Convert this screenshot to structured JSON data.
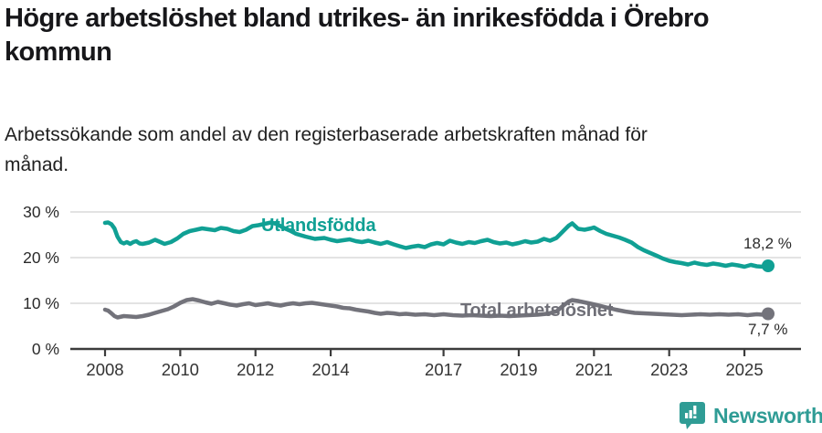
{
  "header": {
    "title": "Högre arbetslöshet bland utrikes- än inrikesfödda i Örebro kommun",
    "subtitle": "Arbetssökande som andel av den registerbaserade arbetskraften månad för månad."
  },
  "footer": {
    "brand": "Newsworthy"
  },
  "colors": {
    "accent_teal": "#10a094",
    "line_gray": "#73737b",
    "grid": "#dadada",
    "axis": "#3c3c3c",
    "text_dark": "#17171a",
    "brand_teal": "#2f9c95"
  },
  "chart_data": {
    "type": "line",
    "title": "Högre arbetslöshet bland utrikes- än inrikesfödda i Örebro kommun",
    "subtitle": "Arbetssökande som andel av den registerbaserade arbetskraften månad för månad.",
    "xlabel": "",
    "ylabel": "",
    "ylim": [
      0,
      30
    ],
    "xlim": [
      2007.9,
      2025.8
    ],
    "grid": "horizontal",
    "legend_position": "inline-labels",
    "yticks": [
      {
        "value": 0,
        "label": "0 %"
      },
      {
        "value": 10,
        "label": "10 %"
      },
      {
        "value": 20,
        "label": "20 %"
      },
      {
        "value": 30,
        "label": "30 %"
      }
    ],
    "xticks": [
      {
        "value": 2008,
        "label": "2008"
      },
      {
        "value": 2010,
        "label": "2010"
      },
      {
        "value": 2012,
        "label": "2012"
      },
      {
        "value": 2014,
        "label": "2014"
      },
      {
        "value": 2017,
        "label": "2017"
      },
      {
        "value": 2019,
        "label": "2019"
      },
      {
        "value": 2021,
        "label": "2021"
      },
      {
        "value": 2023,
        "label": "2023"
      },
      {
        "value": 2025,
        "label": "2025"
      }
    ],
    "series": [
      {
        "name": "Utlandsfödda",
        "color": "#10a094",
        "end_value": 18.2,
        "end_label": "18,2 %",
        "points": [
          [
            2008.0,
            27.6
          ],
          [
            2008.08,
            27.7
          ],
          [
            2008.17,
            27.3
          ],
          [
            2008.25,
            26.4
          ],
          [
            2008.33,
            24.6
          ],
          [
            2008.42,
            23.4
          ],
          [
            2008.5,
            23.1
          ],
          [
            2008.58,
            23.4
          ],
          [
            2008.67,
            23.0
          ],
          [
            2008.75,
            23.4
          ],
          [
            2008.83,
            23.6
          ],
          [
            2008.92,
            23.1
          ],
          [
            2009.0,
            23.0
          ],
          [
            2009.17,
            23.3
          ],
          [
            2009.33,
            23.9
          ],
          [
            2009.5,
            23.3
          ],
          [
            2009.58,
            23.0
          ],
          [
            2009.75,
            23.4
          ],
          [
            2009.92,
            24.2
          ],
          [
            2010.08,
            25.2
          ],
          [
            2010.25,
            25.8
          ],
          [
            2010.42,
            26.1
          ],
          [
            2010.58,
            26.4
          ],
          [
            2010.75,
            26.2
          ],
          [
            2010.92,
            26.0
          ],
          [
            2011.08,
            26.5
          ],
          [
            2011.25,
            26.3
          ],
          [
            2011.42,
            25.8
          ],
          [
            2011.58,
            25.6
          ],
          [
            2011.75,
            26.1
          ],
          [
            2011.92,
            26.9
          ],
          [
            2012.08,
            27.1
          ],
          [
            2012.25,
            27.4
          ],
          [
            2012.42,
            27.7
          ],
          [
            2012.58,
            27.3
          ],
          [
            2012.75,
            26.5
          ],
          [
            2012.92,
            25.9
          ],
          [
            2013.08,
            25.2
          ],
          [
            2013.33,
            24.6
          ],
          [
            2013.58,
            24.1
          ],
          [
            2013.83,
            24.3
          ],
          [
            2014.0,
            23.9
          ],
          [
            2014.17,
            23.6
          ],
          [
            2014.33,
            23.8
          ],
          [
            2014.5,
            24.0
          ],
          [
            2014.67,
            23.6
          ],
          [
            2014.83,
            23.4
          ],
          [
            2015.0,
            23.7
          ],
          [
            2015.17,
            23.3
          ],
          [
            2015.33,
            23.0
          ],
          [
            2015.5,
            23.4
          ],
          [
            2015.67,
            22.9
          ],
          [
            2015.83,
            22.5
          ],
          [
            2016.0,
            22.1
          ],
          [
            2016.17,
            22.4
          ],
          [
            2016.33,
            22.6
          ],
          [
            2016.5,
            22.3
          ],
          [
            2016.67,
            22.9
          ],
          [
            2016.83,
            23.2
          ],
          [
            2017.0,
            22.9
          ],
          [
            2017.17,
            23.7
          ],
          [
            2017.33,
            23.3
          ],
          [
            2017.5,
            23.0
          ],
          [
            2017.67,
            23.4
          ],
          [
            2017.83,
            23.2
          ],
          [
            2018.0,
            23.6
          ],
          [
            2018.17,
            23.9
          ],
          [
            2018.33,
            23.4
          ],
          [
            2018.5,
            23.1
          ],
          [
            2018.67,
            23.3
          ],
          [
            2018.83,
            22.9
          ],
          [
            2019.0,
            23.2
          ],
          [
            2019.17,
            23.6
          ],
          [
            2019.33,
            23.3
          ],
          [
            2019.5,
            23.5
          ],
          [
            2019.67,
            24.1
          ],
          [
            2019.83,
            23.7
          ],
          [
            2020.0,
            24.3
          ],
          [
            2020.17,
            25.7
          ],
          [
            2020.33,
            27.0
          ],
          [
            2020.42,
            27.5
          ],
          [
            2020.58,
            26.3
          ],
          [
            2020.75,
            26.1
          ],
          [
            2020.92,
            26.4
          ],
          [
            2021.0,
            26.6
          ],
          [
            2021.17,
            25.8
          ],
          [
            2021.33,
            25.2
          ],
          [
            2021.5,
            24.8
          ],
          [
            2021.67,
            24.4
          ],
          [
            2021.83,
            23.9
          ],
          [
            2022.0,
            23.3
          ],
          [
            2022.17,
            22.3
          ],
          [
            2022.33,
            21.6
          ],
          [
            2022.5,
            21.0
          ],
          [
            2022.67,
            20.4
          ],
          [
            2022.83,
            19.8
          ],
          [
            2023.0,
            19.3
          ],
          [
            2023.17,
            19.0
          ],
          [
            2023.33,
            18.8
          ],
          [
            2023.5,
            18.5
          ],
          [
            2023.67,
            18.9
          ],
          [
            2023.83,
            18.6
          ],
          [
            2024.0,
            18.4
          ],
          [
            2024.17,
            18.7
          ],
          [
            2024.33,
            18.5
          ],
          [
            2024.5,
            18.2
          ],
          [
            2024.67,
            18.5
          ],
          [
            2024.83,
            18.3
          ],
          [
            2025.0,
            18.0
          ],
          [
            2025.17,
            18.4
          ],
          [
            2025.33,
            18.1
          ],
          [
            2025.5,
            18.0
          ],
          [
            2025.63,
            18.2
          ]
        ]
      },
      {
        "name": "Total arbetslöshet",
        "color": "#73737b",
        "end_value": 7.7,
        "end_label": "7,7 %",
        "points": [
          [
            2008.0,
            8.6
          ],
          [
            2008.08,
            8.4
          ],
          [
            2008.17,
            7.8
          ],
          [
            2008.25,
            7.2
          ],
          [
            2008.33,
            6.9
          ],
          [
            2008.5,
            7.2
          ],
          [
            2008.67,
            7.1
          ],
          [
            2008.83,
            7.0
          ],
          [
            2009.0,
            7.2
          ],
          [
            2009.17,
            7.5
          ],
          [
            2009.33,
            7.9
          ],
          [
            2009.5,
            8.3
          ],
          [
            2009.67,
            8.7
          ],
          [
            2009.83,
            9.3
          ],
          [
            2010.0,
            10.1
          ],
          [
            2010.17,
            10.7
          ],
          [
            2010.33,
            10.9
          ],
          [
            2010.5,
            10.6
          ],
          [
            2010.67,
            10.2
          ],
          [
            2010.83,
            9.9
          ],
          [
            2011.0,
            10.3
          ],
          [
            2011.17,
            10.0
          ],
          [
            2011.33,
            9.7
          ],
          [
            2011.5,
            9.5
          ],
          [
            2011.67,
            9.8
          ],
          [
            2011.83,
            10.0
          ],
          [
            2012.0,
            9.6
          ],
          [
            2012.17,
            9.8
          ],
          [
            2012.33,
            10.0
          ],
          [
            2012.5,
            9.7
          ],
          [
            2012.67,
            9.5
          ],
          [
            2012.83,
            9.8
          ],
          [
            2013.0,
            10.0
          ],
          [
            2013.17,
            9.8
          ],
          [
            2013.33,
            10.0
          ],
          [
            2013.5,
            10.1
          ],
          [
            2013.67,
            9.9
          ],
          [
            2013.83,
            9.7
          ],
          [
            2014.0,
            9.5
          ],
          [
            2014.17,
            9.3
          ],
          [
            2014.33,
            9.0
          ],
          [
            2014.5,
            8.9
          ],
          [
            2014.67,
            8.6
          ],
          [
            2014.83,
            8.4
          ],
          [
            2015.0,
            8.2
          ],
          [
            2015.17,
            7.9
          ],
          [
            2015.33,
            7.7
          ],
          [
            2015.5,
            7.9
          ],
          [
            2015.67,
            7.8
          ],
          [
            2015.83,
            7.6
          ],
          [
            2016.0,
            7.7
          ],
          [
            2016.25,
            7.5
          ],
          [
            2016.5,
            7.6
          ],
          [
            2016.75,
            7.4
          ],
          [
            2017.0,
            7.6
          ],
          [
            2017.25,
            7.4
          ],
          [
            2017.5,
            7.3
          ],
          [
            2017.75,
            7.4
          ],
          [
            2018.0,
            7.3
          ],
          [
            2018.25,
            7.2
          ],
          [
            2018.5,
            7.3
          ],
          [
            2018.75,
            7.2
          ],
          [
            2019.0,
            7.3
          ],
          [
            2019.25,
            7.4
          ],
          [
            2019.5,
            7.5
          ],
          [
            2019.75,
            7.7
          ],
          [
            2020.0,
            8.2
          ],
          [
            2020.17,
            9.4
          ],
          [
            2020.33,
            10.4
          ],
          [
            2020.42,
            10.7
          ],
          [
            2020.58,
            10.5
          ],
          [
            2020.75,
            10.2
          ],
          [
            2020.92,
            9.9
          ],
          [
            2021.08,
            9.6
          ],
          [
            2021.33,
            9.1
          ],
          [
            2021.58,
            8.6
          ],
          [
            2021.83,
            8.2
          ],
          [
            2022.08,
            7.9
          ],
          [
            2022.33,
            7.8
          ],
          [
            2022.58,
            7.7
          ],
          [
            2022.83,
            7.6
          ],
          [
            2023.08,
            7.5
          ],
          [
            2023.33,
            7.4
          ],
          [
            2023.58,
            7.5
          ],
          [
            2023.83,
            7.6
          ],
          [
            2024.08,
            7.5
          ],
          [
            2024.33,
            7.6
          ],
          [
            2024.58,
            7.5
          ],
          [
            2024.83,
            7.6
          ],
          [
            2025.08,
            7.4
          ],
          [
            2025.33,
            7.6
          ],
          [
            2025.5,
            7.5
          ],
          [
            2025.63,
            7.7
          ]
        ]
      }
    ]
  }
}
